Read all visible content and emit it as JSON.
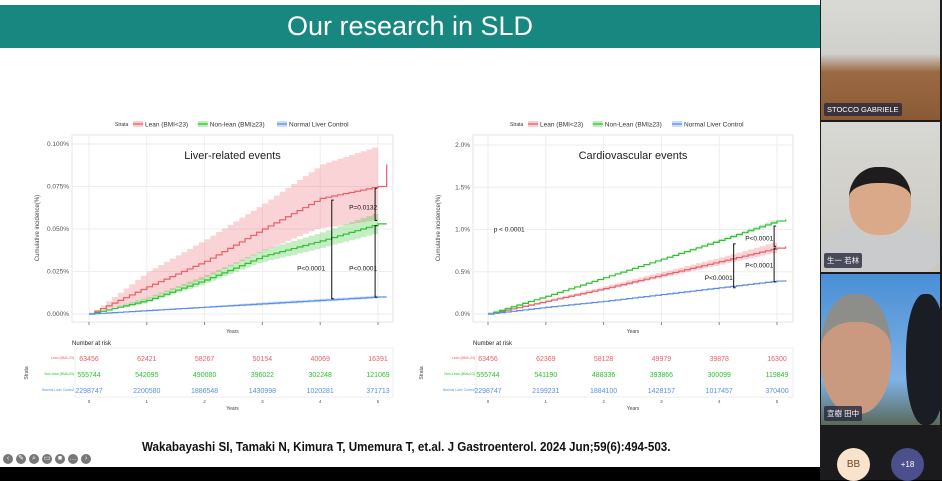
{
  "slide": {
    "title": "Our research in SLD",
    "citation": "Wakabayashi SI, Tamaki N, Kimura T, Umemura T, et.al. J Gastroenterol. 2024 Jun;59(6):494-503.",
    "tools": [
      "back",
      "pen",
      "zoom",
      "captions",
      "camera",
      "more",
      "forward"
    ]
  },
  "participants": [
    {
      "name": "STOCCO GABRIELE"
    },
    {
      "name": "生一 若林"
    },
    {
      "name": "宣樹 田中"
    }
  ],
  "avatars": {
    "initials": "BB",
    "more": "+18"
  },
  "chart_data": [
    {
      "type": "line",
      "title": "Liver-related events",
      "ylabel": "Cumulative incidence(%)",
      "xlabel": "Years",
      "legend_title": "Strata",
      "legend": "top",
      "ylim": [
        0,
        0.1
      ],
      "yticks": [
        "0.000%",
        "0.025%",
        "0.050%",
        "0.075%",
        "0.100%"
      ],
      "ytick_values": [
        0,
        0.025,
        0.05,
        0.075,
        0.1
      ],
      "x": [
        0,
        1,
        2,
        3,
        4,
        5
      ],
      "xlim": [
        0,
        5.2
      ],
      "series": [
        {
          "name": "Lean (BMI<23)",
          "color": "#e8606a",
          "values": [
            0,
            0.016,
            0.031,
            0.05,
            0.068,
            0.075
          ],
          "end": 0.088,
          "lower": [
            0,
            0.008,
            0.02,
            0.036,
            0.05,
            0.055
          ],
          "upper": [
            0,
            0.025,
            0.044,
            0.065,
            0.088,
            0.099
          ]
        },
        {
          "name": "Non-lean (BMI≥23)",
          "color": "#2ec22e",
          "values": [
            0,
            0.008,
            0.02,
            0.034,
            0.043,
            0.053
          ],
          "end": 0.053,
          "lower": [
            0,
            0.006,
            0.017,
            0.03,
            0.038,
            0.047
          ],
          "upper": [
            0,
            0.01,
            0.023,
            0.038,
            0.048,
            0.06
          ]
        },
        {
          "name": "Normal Liver Control",
          "color": "#5b8ee6",
          "values": [
            0,
            0.002,
            0.004,
            0.006,
            0.008,
            0.01
          ],
          "end": 0.01,
          "lower": [
            0,
            0.0015,
            0.0035,
            0.005,
            0.007,
            0.009
          ],
          "upper": [
            0,
            0.0025,
            0.0045,
            0.007,
            0.009,
            0.011
          ]
        }
      ],
      "annotations": [
        {
          "x": 4.2,
          "y0": 0.009,
          "y1": 0.067,
          "label": "P<0.0001",
          "lx": 3.6,
          "ly": 0.0255
        },
        {
          "x": 4.95,
          "y0": 0.055,
          "y1": 0.074,
          "label": "P=0.0132",
          "lx": 4.5,
          "ly": 0.0615
        },
        {
          "x": 4.95,
          "y0": 0.01,
          "y1": 0.052,
          "label": "P<0.0001",
          "lx": 4.5,
          "ly": 0.0255
        }
      ],
      "risk_title": "Number at risk",
      "risk_ylabel": "Strata",
      "risk_xticks": [
        "0",
        "1",
        "2",
        "3",
        "4",
        "5"
      ],
      "risk": [
        [
          "63456",
          "62421",
          "58267",
          "50154",
          "40069",
          "16391"
        ],
        [
          "555744",
          "542095",
          "490080",
          "396022",
          "302248",
          "121069"
        ],
        [
          "2298747",
          "2200580",
          "1886548",
          "1430998",
          "1020281",
          "371713"
        ]
      ]
    },
    {
      "type": "line",
      "title": "Cardiovascular events",
      "ylabel": "Cumulative incidence(%)",
      "xlabel": "Years",
      "legend_title": "Strata",
      "legend": "top",
      "pvalue": "p < 0.0001",
      "ylim": [
        0,
        2
      ],
      "yticks": [
        "0.0%",
        "0.5%",
        "1.0%",
        "1.5%",
        "2.0%"
      ],
      "ytick_values": [
        0,
        0.5,
        1,
        1.5,
        2
      ],
      "x": [
        0,
        1,
        2,
        3,
        4,
        5
      ],
      "xlim": [
        0,
        5.2
      ],
      "series": [
        {
          "name": "Lean (BMI<23)",
          "color": "#e8606a",
          "values": [
            0,
            0.15,
            0.3,
            0.46,
            0.62,
            0.78
          ],
          "end": 0.8,
          "lower": [
            0,
            0.13,
            0.27,
            0.42,
            0.57,
            0.72
          ],
          "upper": [
            0,
            0.17,
            0.33,
            0.5,
            0.67,
            0.86
          ]
        },
        {
          "name": "Non-Lean (BMI≥23)",
          "color": "#2ec22e",
          "values": [
            0,
            0.21,
            0.43,
            0.65,
            0.87,
            1.1
          ],
          "end": 1.12,
          "lower": [
            0,
            0.2,
            0.42,
            0.64,
            0.85,
            1.07
          ],
          "upper": [
            0,
            0.22,
            0.44,
            0.66,
            0.89,
            1.13
          ]
        },
        {
          "name": "Normal Liver Control",
          "color": "#5b8ee6",
          "values": [
            0,
            0.08,
            0.15,
            0.23,
            0.31,
            0.39
          ],
          "end": 0.4,
          "lower": [
            0,
            0.075,
            0.145,
            0.22,
            0.3,
            0.38
          ],
          "upper": [
            0,
            0.085,
            0.155,
            0.24,
            0.32,
            0.4
          ]
        }
      ],
      "annotations": [
        {
          "x": 4.25,
          "y0": 0.31,
          "y1": 0.83,
          "label": "P<0.0001",
          "lx": 3.75,
          "ly": 0.4
        },
        {
          "x": 4.95,
          "y0": 0.8,
          "y1": 1.04,
          "label": "P<0.0001",
          "lx": 4.45,
          "ly": 0.87
        },
        {
          "x": 4.95,
          "y0": 0.38,
          "y1": 0.78,
          "label": "P<0.0001",
          "lx": 4.45,
          "ly": 0.55
        }
      ],
      "risk_title": "Number at risk",
      "risk_ylabel": "Strata",
      "risk_xticks": [
        "0",
        "1",
        "2",
        "3",
        "4",
        "5"
      ],
      "risk": [
        [
          "63456",
          "62369",
          "58128",
          "49979",
          "39878",
          "16300"
        ],
        [
          "555744",
          "541190",
          "488336",
          "393866",
          "300099",
          "119849"
        ],
        [
          "2298747",
          "2199231",
          "1884100",
          "1428157",
          "1017457",
          "370400"
        ]
      ]
    }
  ]
}
